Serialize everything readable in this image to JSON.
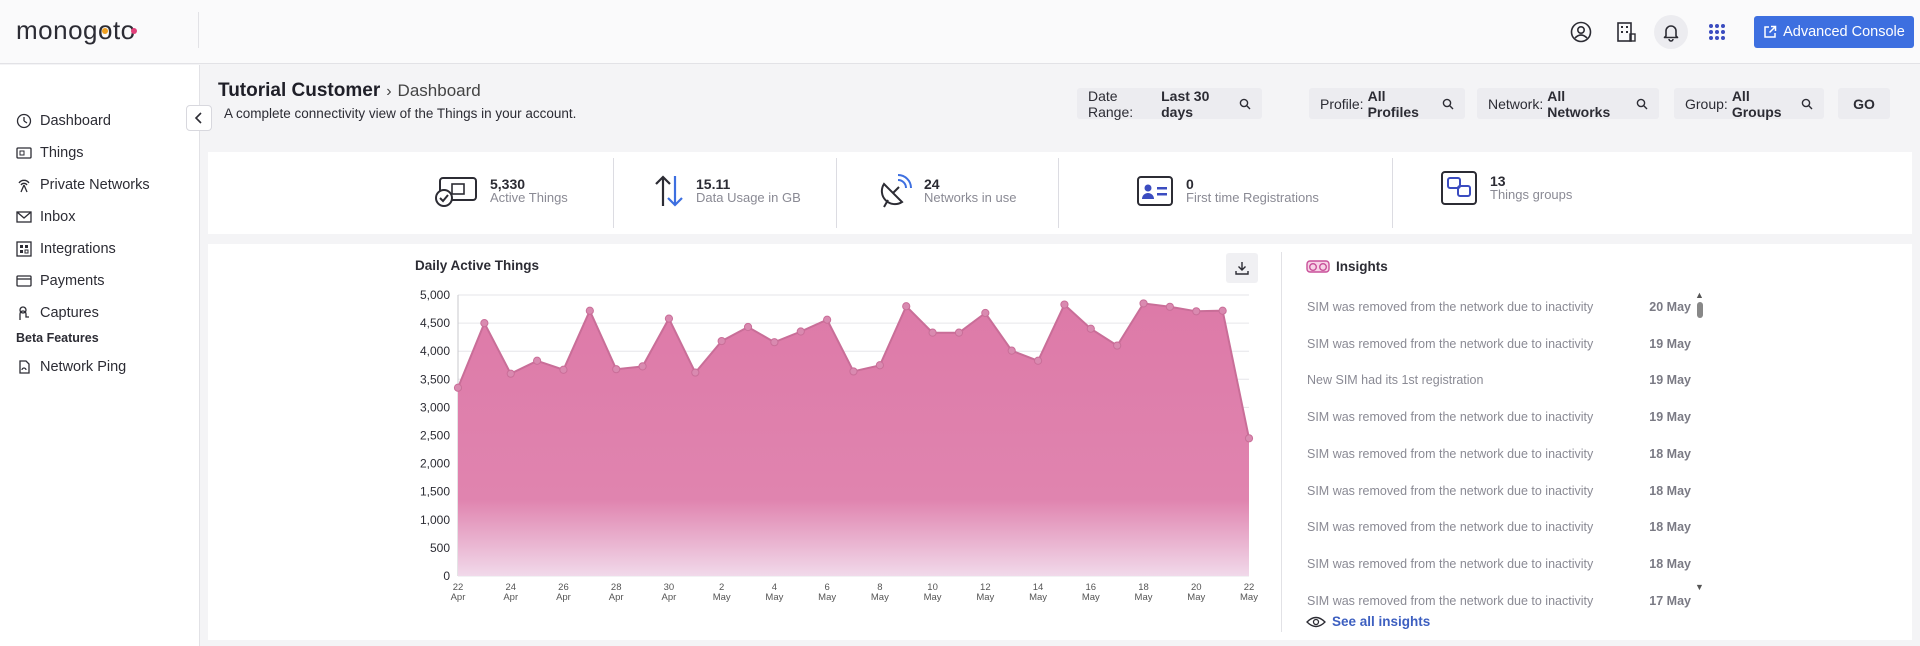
{
  "brand": {
    "logo_text": "monogoto",
    "accent": "#3d6fe0"
  },
  "topbar": {
    "icons": [
      "user-circle-icon",
      "building-icon",
      "bell-icon",
      "apps-grid-icon"
    ],
    "advanced_console_label": "Advanced Console"
  },
  "sidebar": {
    "items": [
      {
        "label": "Dashboard",
        "icon": "dashboard-icon"
      },
      {
        "label": "Things",
        "icon": "sim-card-icon"
      },
      {
        "label": "Private Networks",
        "icon": "antenna-icon"
      },
      {
        "label": "Inbox",
        "icon": "envelope-icon"
      },
      {
        "label": "Integrations",
        "icon": "integrations-icon"
      },
      {
        "label": "Payments",
        "icon": "card-icon"
      },
      {
        "label": "Captures",
        "icon": "capture-icon"
      }
    ],
    "beta_section_label": "Beta Features",
    "beta_items": [
      {
        "label": "Network Ping",
        "icon": "ping-icon"
      }
    ]
  },
  "header": {
    "title": "Tutorial Customer",
    "separator": "›",
    "breadcrumb": "Dashboard",
    "subtitle": "A complete connectivity view of the Things in your account."
  },
  "filters": {
    "date_range": {
      "label": "Date Range:",
      "value": "Last 30 days"
    },
    "profile": {
      "label": "Profile:",
      "value": "All Profiles"
    },
    "network": {
      "label": "Network:",
      "value": "All Networks"
    },
    "group": {
      "label": "Group:",
      "value": "All Groups"
    },
    "go_label": "GO"
  },
  "stats": [
    {
      "value": "5,330",
      "label": "Active Things",
      "icon": "active-things-icon"
    },
    {
      "value": "15.11",
      "label": "Data Usage in GB",
      "icon": "up-down-arrows-icon"
    },
    {
      "value": "24",
      "label": "Networks in use",
      "icon": "satellite-dish-icon"
    },
    {
      "value": "0",
      "label": "First time Registrations",
      "icon": "id-card-icon"
    },
    {
      "value": "13",
      "label": "Things groups",
      "icon": "groups-icon"
    }
  ],
  "chart_title": "Daily Active Things",
  "chart_data": {
    "type": "area",
    "title": "Daily Active Things",
    "x": [
      "22 Apr",
      "23 Apr",
      "24 Apr",
      "25 Apr",
      "26 Apr",
      "27 Apr",
      "28 Apr",
      "29 Apr",
      "30 Apr",
      "1 May",
      "2 May",
      "3 May",
      "4 May",
      "5 May",
      "6 May",
      "7 May",
      "8 May",
      "9 May",
      "10 May",
      "11 May",
      "12 May",
      "13 May",
      "14 May",
      "15 May",
      "16 May",
      "17 May",
      "18 May",
      "19 May",
      "20 May",
      "21 May",
      "22 May"
    ],
    "values": [
      3350,
      4500,
      3600,
      3830,
      3670,
      4720,
      3680,
      3730,
      4580,
      3620,
      4180,
      4430,
      4160,
      4350,
      4560,
      3640,
      3750,
      4800,
      4330,
      4330,
      4680,
      4010,
      3830,
      4830,
      4400,
      4100,
      4850,
      4790,
      4710,
      4720,
      2450
    ],
    "x_tick_labels": [
      [
        "22",
        "Apr"
      ],
      [
        "24",
        "Apr"
      ],
      [
        "26",
        "Apr"
      ],
      [
        "28",
        "Apr"
      ],
      [
        "30",
        "Apr"
      ],
      [
        "2",
        "May"
      ],
      [
        "4",
        "May"
      ],
      [
        "6",
        "May"
      ],
      [
        "8",
        "May"
      ],
      [
        "10",
        "May"
      ],
      [
        "12",
        "May"
      ],
      [
        "14",
        "May"
      ],
      [
        "16",
        "May"
      ],
      [
        "18",
        "May"
      ],
      [
        "20",
        "May"
      ],
      [
        "22",
        "May"
      ]
    ],
    "y_ticks": [
      "0",
      "500",
      "1,000",
      "1,500",
      "2,000",
      "2,500",
      "3,000",
      "3,500",
      "4,000",
      "4,500",
      "5,000"
    ],
    "ylim": [
      0,
      5000
    ],
    "xlabel": "",
    "ylabel": "",
    "grid": true,
    "color": "#e07ea8"
  },
  "insights": {
    "title": "Insights",
    "items": [
      {
        "text": "SIM was removed from the network due to inactivity",
        "date": "20 May"
      },
      {
        "text": "SIM was removed from the network due to inactivity",
        "date": "19 May"
      },
      {
        "text": "New SIM had its 1st registration",
        "date": "19 May"
      },
      {
        "text": "SIM was removed from the network due to inactivity",
        "date": "19 May"
      },
      {
        "text": "SIM was removed from the network due to inactivity",
        "date": "18 May"
      },
      {
        "text": "SIM was removed from the network due to inactivity",
        "date": "18 May"
      },
      {
        "text": "SIM was removed from the network due to inactivity",
        "date": "18 May"
      },
      {
        "text": "SIM was removed from the network due to inactivity",
        "date": "18 May"
      },
      {
        "text": "SIM was removed from the network due to inactivity",
        "date": "17 May"
      }
    ],
    "see_all_label": "See all insights"
  }
}
